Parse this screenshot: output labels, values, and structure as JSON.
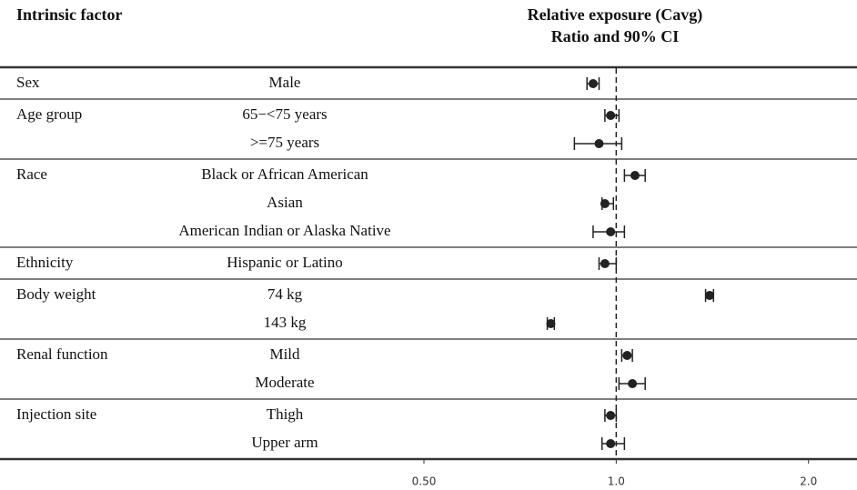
{
  "chart_data": {
    "type": "forest",
    "row_header": "Intrinsic factor",
    "x_title": [
      "Relative exposure (Cavg)",
      "Ratio and 90% CI"
    ],
    "log_x": true,
    "xlim": [
      0.43,
      2.29
    ],
    "xticks": [
      {
        "value": 0.5,
        "label": "0.50"
      },
      {
        "value": 1,
        "label": "1.0"
      },
      {
        "value": 2,
        "label": "2.0"
      }
    ],
    "reference_line": 1,
    "color": "#222222",
    "groups": [
      {
        "name": "Sex",
        "rows": [
          {
            "label": "Male",
            "value": 0.92,
            "lower": 0.9,
            "upper": 0.94
          }
        ]
      },
      {
        "name": "Age group",
        "rows": [
          {
            "label": "65−<75 years",
            "value": 0.98,
            "lower": 0.96,
            "upper": 1.01
          },
          {
            "label": ">=75 years",
            "value": 0.94,
            "lower": 0.86,
            "upper": 1.02
          }
        ]
      },
      {
        "name": "Race",
        "rows": [
          {
            "label": "Black or African American",
            "value": 1.07,
            "lower": 1.03,
            "upper": 1.11
          },
          {
            "label": "Asian",
            "value": 0.96,
            "lower": 0.95,
            "upper": 0.99
          },
          {
            "label": "American Indian or Alaska Native",
            "value": 0.98,
            "lower": 0.92,
            "upper": 1.03
          }
        ]
      },
      {
        "name": "Ethnicity",
        "rows": [
          {
            "label": "Hispanic or Latino",
            "value": 0.96,
            "lower": 0.94,
            "upper": 1.0
          }
        ]
      },
      {
        "name": "Body weight",
        "rows": [
          {
            "label": "74 kg",
            "value": 1.4,
            "lower": 1.38,
            "upper": 1.42
          },
          {
            "label": "143 kg",
            "value": 0.79,
            "lower": 0.78,
            "upper": 0.8
          }
        ]
      },
      {
        "name": "Renal function",
        "rows": [
          {
            "label": "Mild",
            "value": 1.04,
            "lower": 1.02,
            "upper": 1.06
          },
          {
            "label": "Moderate",
            "value": 1.06,
            "lower": 1.01,
            "upper": 1.11
          }
        ]
      },
      {
        "name": "Injection site",
        "rows": [
          {
            "label": "Thigh",
            "value": 0.98,
            "lower": 0.96,
            "upper": 1.0
          },
          {
            "label": "Upper arm",
            "value": 0.98,
            "lower": 0.95,
            "upper": 1.03
          }
        ]
      }
    ]
  }
}
